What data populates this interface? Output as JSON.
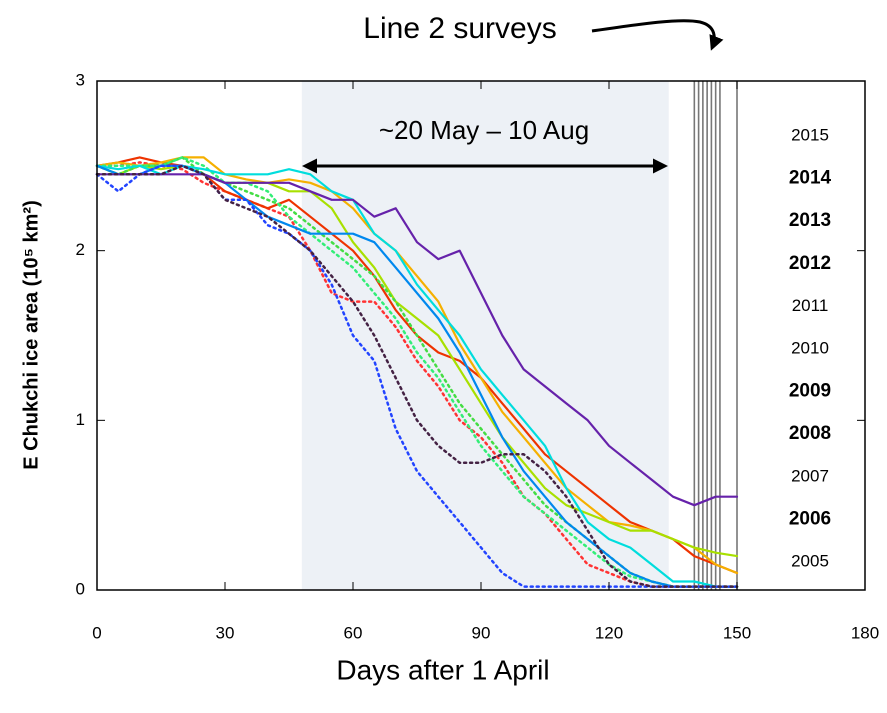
{
  "chart_data": {
    "type": "line",
    "title": "Line 2 surveys",
    "annotation": "~20 May – 10 Aug",
    "x_label": "Days after 1 April",
    "y_label": "E Chukchi ice area (10⁵ km²)",
    "x": [
      0,
      5,
      10,
      15,
      20,
      25,
      30,
      35,
      40,
      45,
      50,
      55,
      60,
      65,
      70,
      75,
      80,
      85,
      90,
      95,
      100,
      105,
      110,
      115,
      120,
      125,
      130,
      135,
      140,
      145,
      150
    ],
    "xlim": [
      0,
      180
    ],
    "xticks": [
      0,
      30,
      60,
      90,
      120,
      150,
      180
    ],
    "ylim": [
      0,
      3
    ],
    "yticks": [
      0,
      1,
      2,
      3
    ],
    "shaded_span": [
      48,
      134
    ],
    "survey_days": [
      140,
      141,
      142,
      143,
      144,
      145,
      146,
      150
    ],
    "series": [
      {
        "name": "2015",
        "color": "#ff3333",
        "style": "dotted",
        "values": [
          2.5,
          2.5,
          2.52,
          2.5,
          2.48,
          2.4,
          2.35,
          2.3,
          2.25,
          2.2,
          2.0,
          1.75,
          1.7,
          1.7,
          1.55,
          1.35,
          1.2,
          1.0,
          0.9,
          0.75,
          0.55,
          0.45,
          0.3,
          0.15,
          0.1,
          0.05,
          0.02,
          0.02,
          0.02,
          0.02,
          0.02
        ]
      },
      {
        "name": "2014",
        "color": "#ee3300",
        "style": "solid",
        "values": [
          2.5,
          2.52,
          2.55,
          2.52,
          2.5,
          2.45,
          2.35,
          2.3,
          2.25,
          2.3,
          2.2,
          2.1,
          2.0,
          1.85,
          1.65,
          1.5,
          1.4,
          1.35,
          1.25,
          1.1,
          0.95,
          0.8,
          0.7,
          0.6,
          0.5,
          0.4,
          0.35,
          0.3,
          0.2,
          0.15,
          0.1
        ]
      },
      {
        "name": "2013",
        "color": "#f5b000",
        "style": "solid",
        "values": [
          2.5,
          2.52,
          2.5,
          2.52,
          2.55,
          2.55,
          2.45,
          2.42,
          2.4,
          2.42,
          2.4,
          2.35,
          2.25,
          2.1,
          2.0,
          1.85,
          1.7,
          1.45,
          1.25,
          1.05,
          0.9,
          0.75,
          0.6,
          0.5,
          0.4,
          0.38,
          0.35,
          0.3,
          0.25,
          0.15,
          0.1
        ]
      },
      {
        "name": "2012",
        "color": "#a8e000",
        "style": "solid",
        "values": [
          2.5,
          2.45,
          2.5,
          2.48,
          2.5,
          2.45,
          2.4,
          2.4,
          2.4,
          2.35,
          2.35,
          2.25,
          2.05,
          1.9,
          1.7,
          1.6,
          1.5,
          1.3,
          1.1,
          0.9,
          0.75,
          0.6,
          0.5,
          0.45,
          0.4,
          0.35,
          0.35,
          0.3,
          0.25,
          0.22,
          0.2
        ]
      },
      {
        "name": "2011",
        "color": "#44dd44",
        "style": "dotted",
        "values": [
          2.5,
          2.45,
          2.5,
          2.5,
          2.55,
          2.45,
          2.4,
          2.35,
          2.3,
          2.25,
          2.15,
          2.05,
          1.95,
          1.85,
          1.7,
          1.5,
          1.3,
          1.1,
          0.95,
          0.8,
          0.65,
          0.5,
          0.4,
          0.3,
          0.2,
          0.1,
          0.05,
          0.02,
          0.02,
          0.02,
          0.02
        ]
      },
      {
        "name": "2010",
        "color": "#33ee77",
        "style": "dotted",
        "values": [
          2.5,
          2.5,
          2.5,
          2.5,
          2.55,
          2.5,
          2.4,
          2.4,
          2.35,
          2.2,
          2.1,
          2.0,
          1.9,
          1.75,
          1.6,
          1.4,
          1.25,
          1.05,
          0.85,
          0.7,
          0.55,
          0.45,
          0.35,
          0.25,
          0.15,
          0.08,
          0.05,
          0.02,
          0.02,
          0.02,
          0.02
        ]
      },
      {
        "name": "2009",
        "color": "#00dddd",
        "style": "solid",
        "values": [
          2.5,
          2.48,
          2.5,
          2.45,
          2.5,
          2.48,
          2.45,
          2.45,
          2.45,
          2.48,
          2.45,
          2.35,
          2.3,
          2.1,
          2.0,
          1.8,
          1.65,
          1.5,
          1.3,
          1.15,
          1.0,
          0.85,
          0.6,
          0.4,
          0.3,
          0.25,
          0.15,
          0.05,
          0.05,
          0.02,
          0.02
        ]
      },
      {
        "name": "2008",
        "color": "#0088ee",
        "style": "solid",
        "values": [
          2.5,
          2.45,
          2.45,
          2.5,
          2.5,
          2.45,
          2.4,
          2.3,
          2.2,
          2.15,
          2.1,
          2.1,
          2.1,
          2.05,
          1.9,
          1.75,
          1.6,
          1.4,
          1.15,
          0.9,
          0.7,
          0.55,
          0.4,
          0.3,
          0.2,
          0.1,
          0.05,
          0.02,
          0.02,
          0.02,
          0.02
        ]
      },
      {
        "name": "2007",
        "color": "#2244ff",
        "style": "dotted",
        "values": [
          2.45,
          2.35,
          2.45,
          2.5,
          2.5,
          2.45,
          2.3,
          2.3,
          2.15,
          2.1,
          2.0,
          1.8,
          1.5,
          1.35,
          0.95,
          0.7,
          0.55,
          0.4,
          0.25,
          0.1,
          0.02,
          0.02,
          0.02,
          0.02,
          0.02,
          0.02,
          0.02,
          0.02,
          0.02,
          0.02,
          0.02
        ]
      },
      {
        "name": "2006",
        "color": "#6622aa",
        "style": "solid",
        "values": [
          2.45,
          2.45,
          2.45,
          2.45,
          2.45,
          2.45,
          2.4,
          2.4,
          2.4,
          2.4,
          2.35,
          2.3,
          2.3,
          2.2,
          2.25,
          2.05,
          1.95,
          2.0,
          1.75,
          1.5,
          1.3,
          1.2,
          1.1,
          1.0,
          0.85,
          0.75,
          0.65,
          0.55,
          0.5,
          0.55,
          0.55
        ]
      },
      {
        "name": "2005",
        "color": "#442244",
        "style": "dotted",
        "values": [
          2.45,
          2.45,
          2.45,
          2.45,
          2.5,
          2.45,
          2.3,
          2.25,
          2.2,
          2.1,
          2.0,
          1.85,
          1.7,
          1.5,
          1.25,
          1.0,
          0.85,
          0.75,
          0.75,
          0.8,
          0.8,
          0.7,
          0.55,
          0.35,
          0.15,
          0.05,
          0.02,
          0.02,
          0.02,
          0.02,
          0.02
        ]
      }
    ]
  }
}
